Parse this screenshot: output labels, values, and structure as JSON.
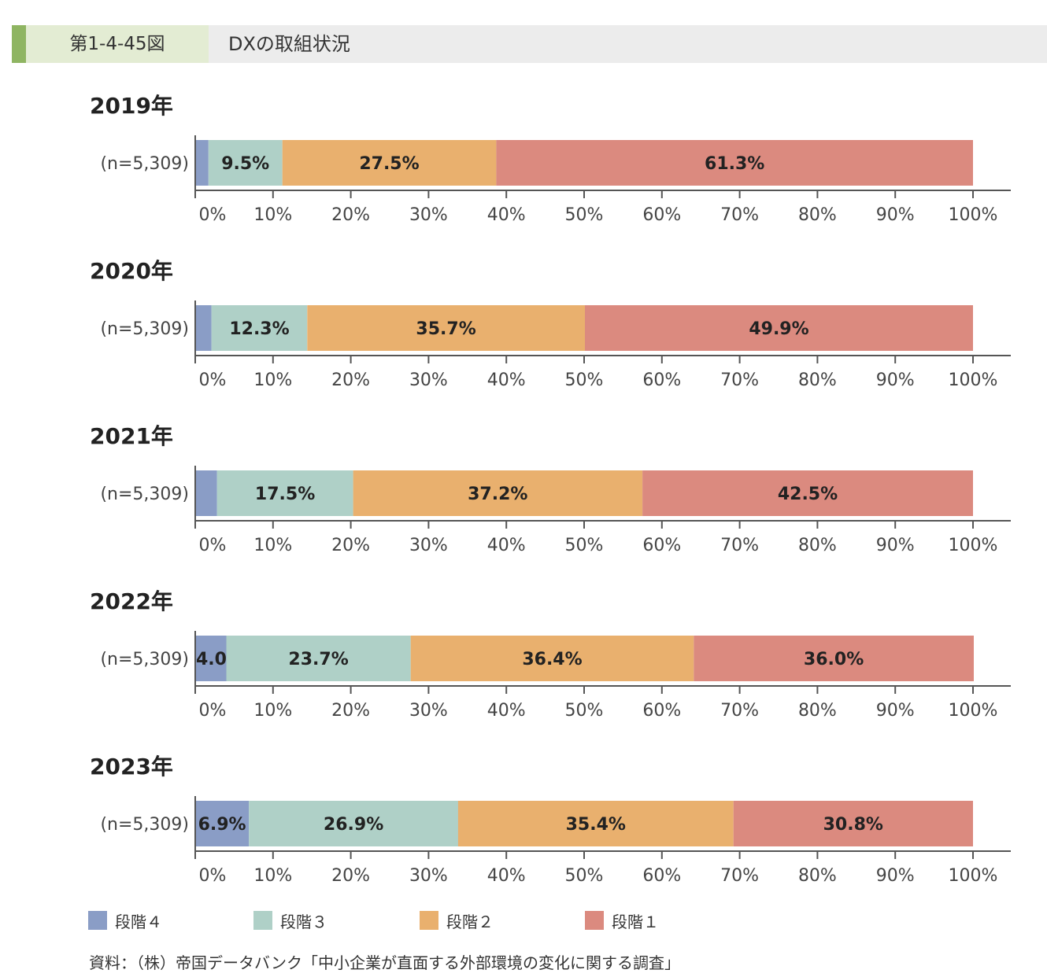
{
  "header": {
    "figure_number": "第1-4-45図",
    "title": "DXの取組状況"
  },
  "colors": {
    "段階4": "#8a9dc6",
    "段階3": "#afd0c7",
    "段階2": "#e9b06e",
    "段階1": "#db8a7f",
    "axis": "#555555"
  },
  "chart_data": {
    "type": "bar",
    "orientation": "horizontal",
    "stacked": true,
    "xlim": [
      0,
      100
    ],
    "x_ticks": [
      "0%",
      "10%",
      "20%",
      "30%",
      "40%",
      "50%",
      "60%",
      "70%",
      "80%",
      "90%",
      "100%"
    ],
    "legend_position": "bottom-left",
    "grid": false,
    "series_order": [
      "段階4",
      "段階3",
      "段階2",
      "段階1"
    ],
    "panels": [
      {
        "year": "2019年",
        "n_label": "(n=5,309)",
        "values": [
          1.7,
          9.5,
          27.5,
          61.3
        ],
        "labels": [
          "",
          "9.5%",
          "27.5%",
          "61.3%"
        ]
      },
      {
        "year": "2020年",
        "n_label": "(n=5,309)",
        "values": [
          2.1,
          12.3,
          35.7,
          49.9
        ],
        "labels": [
          "",
          "12.3%",
          "35.7%",
          "49.9%"
        ]
      },
      {
        "year": "2021年",
        "n_label": "(n=5,309)",
        "values": [
          2.8,
          17.5,
          37.2,
          42.5
        ],
        "labels": [
          "",
          "17.5%",
          "37.2%",
          "42.5%"
        ]
      },
      {
        "year": "2022年",
        "n_label": "(n=5,309)",
        "values": [
          4.0,
          23.7,
          36.4,
          36.0
        ],
        "labels": [
          "4.0%",
          "23.7%",
          "36.4%",
          "36.0%"
        ]
      },
      {
        "year": "2023年",
        "n_label": "(n=5,309)",
        "values": [
          6.9,
          26.9,
          35.4,
          30.8
        ],
        "labels": [
          "6.9%",
          "26.9%",
          "35.4%",
          "30.8%"
        ]
      }
    ]
  },
  "legend": [
    {
      "name": "段階4",
      "label": "段階４"
    },
    {
      "name": "段階3",
      "label": "段階３"
    },
    {
      "name": "段階2",
      "label": "段階２"
    },
    {
      "name": "段階1",
      "label": "段階１"
    }
  ],
  "source": "資料：（株）帝国データバンク「中小企業が直面する外部環境の変化に関する調査」"
}
